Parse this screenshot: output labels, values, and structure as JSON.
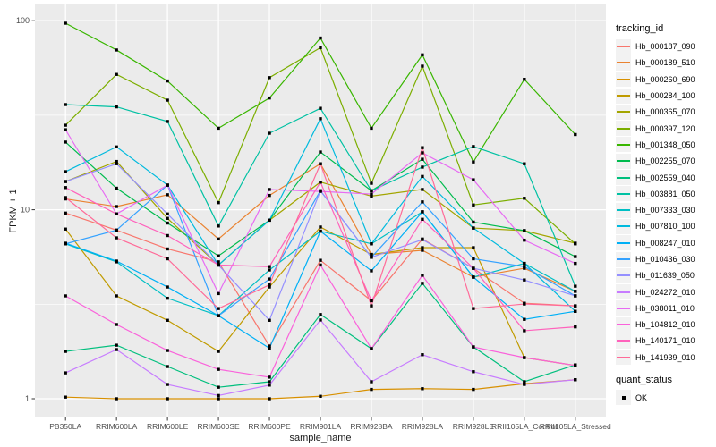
{
  "figure": {
    "y_axis": {
      "title": "FPKM + 1"
    },
    "x_axis": {
      "title": "sample_name"
    },
    "legend": {
      "title": "tracking_id",
      "quant_title": "quant_status",
      "quant_items": [
        {
          "label": "OK",
          "shape": "square",
          "color": "#000000"
        }
      ]
    },
    "colors": {
      "panel": "#EBEBEB",
      "grid_major": "#FFFFFF",
      "grid_minor": "#FFFFFF",
      "tick": "#333333",
      "tick_label": "#4D4D4D",
      "point": "#000000"
    }
  },
  "chart_data": {
    "type": "line",
    "title": "",
    "xlabel": "sample_name",
    "ylabel": "FPKM + 1",
    "y_scale": "log10",
    "ylim": [
      1,
      100
    ],
    "y_major_ticks": [
      1,
      10,
      100
    ],
    "y_minor_ticks": [
      3.1623,
      31.623
    ],
    "grid": true,
    "legend_position": "right",
    "point_shape": "filled-square",
    "categories": [
      "PB350LA",
      "RRIM600LA",
      "RRIM600LE",
      "RRIM600SE",
      "RRIM600PE",
      "RRIM901LA",
      "RRIM928BA",
      "RRIM928LA",
      "RRIM928LE",
      "RRII105LA_Control",
      "RRII105LA_Stressed"
    ],
    "series": [
      {
        "name": "Hb_000187_090",
        "color": "#F8766D",
        "values": [
          9.6,
          7.8,
          6.2,
          5.3,
          1.9,
          5.4,
          3.3,
          7.0,
          4.9,
          3.2,
          3.1
        ]
      },
      {
        "name": "Hb_000189_510",
        "color": "#EA8331",
        "values": [
          11.4,
          10.4,
          12.0,
          7.0,
          11.9,
          17.5,
          5.8,
          6.1,
          4.4,
          4.9,
          3.7
        ]
      },
      {
        "name": "Hb_000260_690",
        "color": "#D89000",
        "values": [
          1.02,
          1.0,
          1.0,
          1.0,
          1.0,
          1.03,
          1.12,
          1.13,
          1.12,
          1.2,
          1.26
        ]
      },
      {
        "name": "Hb_000284_100",
        "color": "#C09B00",
        "values": [
          7.9,
          3.5,
          2.6,
          1.78,
          3.9,
          8.1,
          5.8,
          6.3,
          6.3,
          1.65,
          1.5
        ]
      },
      {
        "name": "Hb_000365_070",
        "color": "#A3A500",
        "values": [
          14.1,
          18.0,
          9.0,
          5.1,
          8.8,
          14.0,
          11.8,
          12.8,
          8.0,
          7.75,
          6.65
        ]
      },
      {
        "name": "Hb_000397_120",
        "color": "#7CAE00",
        "values": [
          28,
          52,
          38,
          10.9,
          50,
          72,
          13.8,
          57.5,
          10.6,
          11.5,
          6.6
        ]
      },
      {
        "name": "Hb_001348_050",
        "color": "#39B600",
        "values": [
          97,
          70,
          48,
          27,
          39,
          81,
          27,
          66,
          17.9,
          49,
          25
        ]
      },
      {
        "name": "Hb_002255_070",
        "color": "#00BB4E",
        "values": [
          22.8,
          13.0,
          8.5,
          5.7,
          8.8,
          20.2,
          12.6,
          18.5,
          8.6,
          7.75,
          5.65
        ]
      },
      {
        "name": "Hb_002559_040",
        "color": "#00BF7D",
        "values": [
          1.78,
          1.92,
          1.48,
          1.15,
          1.23,
          2.79,
          1.84,
          4.08,
          1.88,
          1.23,
          1.51
        ]
      },
      {
        "name": "Hb_003881_050",
        "color": "#00C1A3",
        "values": [
          36,
          35,
          29.3,
          8.2,
          25.4,
          34.4,
          12.6,
          16.8,
          21.6,
          17.5,
          3.94
        ]
      },
      {
        "name": "Hb_007333_030",
        "color": "#00BFC4",
        "values": [
          6.6,
          5.3,
          3.4,
          2.75,
          4.8,
          7.7,
          6.6,
          9.75,
          4.4,
          5.2,
          3.7
        ]
      },
      {
        "name": "Hb_007810_100",
        "color": "#00BADE",
        "values": [
          15.9,
          21.5,
          13.5,
          5.1,
          8.8,
          30.3,
          6.6,
          15.0,
          8.0,
          5.2,
          2.9
        ]
      },
      {
        "name": "Hb_008247_010",
        "color": "#00B0F6",
        "values": [
          6.65,
          5.35,
          3.9,
          2.75,
          1.85,
          7.7,
          4.75,
          9.75,
          4.4,
          2.63,
          2.9
        ]
      },
      {
        "name": "Hb_010436_030",
        "color": "#35A2FF",
        "values": [
          6.6,
          7.8,
          13.5,
          2.75,
          4.3,
          12.6,
          5.6,
          11.0,
          5.5,
          5.0,
          3.5
        ]
      },
      {
        "name": "Hb_011639_050",
        "color": "#9590FF",
        "values": [
          14.1,
          17.5,
          9.5,
          5.1,
          2.6,
          12.6,
          5.6,
          6.95,
          4.9,
          4.25,
          3.5
        ]
      },
      {
        "name": "Hb_024272_010",
        "color": "#C77CFF",
        "values": [
          1.37,
          1.82,
          1.19,
          1.04,
          1.18,
          2.61,
          1.23,
          1.71,
          1.39,
          1.19,
          1.26
        ]
      },
      {
        "name": "Hb_038011_010",
        "color": "#E76BF3",
        "values": [
          26.5,
          9.5,
          13.5,
          3.6,
          12.8,
          12.5,
          12.1,
          20.0,
          14.4,
          6.9,
          5.2
        ]
      },
      {
        "name": "Hb_104812_010",
        "color": "#FA62DB",
        "values": [
          3.5,
          2.47,
          1.8,
          1.43,
          1.3,
          5.1,
          1.84,
          4.5,
          1.88,
          1.65,
          1.5
        ]
      },
      {
        "name": "Hb_140171_010",
        "color": "#FF62BC",
        "values": [
          13.1,
          9.5,
          7.3,
          5.1,
          5.0,
          14.0,
          3.3,
          8.9,
          4.9,
          2.29,
          2.4
        ]
      },
      {
        "name": "Hb_141939_010",
        "color": "#FF6A98",
        "values": [
          11.6,
          7.1,
          5.5,
          3.0,
          4.0,
          17.5,
          3.1,
          21.3,
          3.0,
          3.17,
          3.1
        ]
      }
    ]
  }
}
